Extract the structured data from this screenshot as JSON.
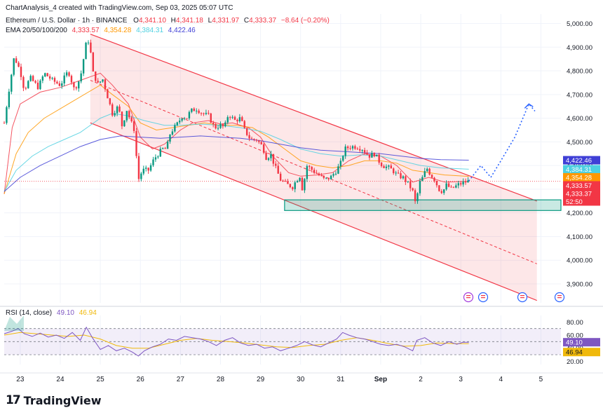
{
  "header": {
    "created": "ChartAnalysis_4 created with TradingView.com, Sep 03, 2025 05:07 UTC",
    "symbol": "Ethereum / U.S. Dollar · 1h · BINANCE",
    "o_label": "O",
    "o_value": "4,341.10",
    "h_label": "H",
    "h_value": "4,341.18",
    "l_label": "L",
    "l_value": "4,331.97",
    "c_label": "C",
    "c_value": "4,333.37",
    "change": "−8.64 (−0.20%)",
    "ema_label": "EMA 20/50/100/200",
    "ema20": "4,333.57",
    "ema50": "4,354.28",
    "ema100": "4,384.31",
    "ema200": "4,422.46",
    "rsi_label": "RSI (14, close)",
    "rsi_value": "49.10",
    "rsi_ma_value": "46.94"
  },
  "branding": {
    "logo_text": "TradingView",
    "logo_mark": "17"
  },
  "colors": {
    "up": "#089981",
    "down": "#f23645",
    "ema20": "#f23645",
    "ema50": "#ff9800",
    "ema100": "#4dd0e1",
    "ema200": "#3f3fd6",
    "channel": "#f23645",
    "zone": "#089981",
    "projection": "#2962ff",
    "rsi": "#7e57c2",
    "rsi_ma": "#f0b90b"
  },
  "chart_data": {
    "type": "candlestick",
    "symbol": "Ethereum / U.S. Dollar",
    "timeframe": "1h",
    "y_ticks": [
      3900,
      4000,
      4100,
      4200,
      4300,
      4400,
      4500,
      4600,
      4700,
      4800,
      4900,
      5000
    ],
    "y_tick_labels": [
      "3,900.00",
      "4,000.00",
      "4,100.00",
      "4,200.00",
      "4,300.00",
      "4,400.00",
      "4,500.00",
      "4,600.00",
      "4,700.00",
      "4,800.00",
      "4,900.00",
      "5,000.00"
    ],
    "ylim": [
      3820,
      5040
    ],
    "x_tick_labels": [
      "23",
      "24",
      "25",
      "26",
      "27",
      "28",
      "29",
      "30",
      "31",
      "Sep",
      "2",
      "3",
      "4",
      "5"
    ],
    "x_tick_days": [
      0,
      1,
      2,
      3,
      4,
      5,
      6,
      7,
      8,
      9,
      10,
      11,
      12,
      13
    ],
    "xlim_days": [
      -0.4,
      13.5
    ],
    "last_day": 11.2,
    "close_price_path": [
      [
        -0.4,
        4580
      ],
      [
        -0.3,
        4700
      ],
      [
        -0.15,
        4860
      ],
      [
        0.0,
        4800
      ],
      [
        0.1,
        4720
      ],
      [
        0.25,
        4770
      ],
      [
        0.45,
        4730
      ],
      [
        0.6,
        4790
      ],
      [
        0.8,
        4760
      ],
      [
        1.0,
        4740
      ],
      [
        1.2,
        4800
      ],
      [
        1.35,
        4720
      ],
      [
        1.5,
        4770
      ],
      [
        1.65,
        4920
      ],
      [
        1.72,
        4930
      ],
      [
        1.82,
        4790
      ],
      [
        1.95,
        4740
      ],
      [
        2.05,
        4770
      ],
      [
        2.15,
        4710
      ],
      [
        2.3,
        4620
      ],
      [
        2.45,
        4650
      ],
      [
        2.55,
        4560
      ],
      [
        2.65,
        4640
      ],
      [
        2.75,
        4590
      ],
      [
        2.85,
        4550
      ],
      [
        2.9,
        4440
      ],
      [
        2.95,
        4340
      ],
      [
        3.05,
        4380
      ],
      [
        3.2,
        4380
      ],
      [
        3.35,
        4430
      ],
      [
        3.55,
        4470
      ],
      [
        3.65,
        4470
      ],
      [
        3.75,
        4540
      ],
      [
        3.9,
        4570
      ],
      [
        4.05,
        4610
      ],
      [
        4.15,
        4600
      ],
      [
        4.25,
        4630
      ],
      [
        4.4,
        4640
      ],
      [
        4.55,
        4620
      ],
      [
        4.7,
        4610
      ],
      [
        4.85,
        4560
      ],
      [
        5.0,
        4570
      ],
      [
        5.1,
        4560
      ],
      [
        5.2,
        4620
      ],
      [
        5.35,
        4590
      ],
      [
        5.5,
        4600
      ],
      [
        5.6,
        4550
      ],
      [
        5.75,
        4510
      ],
      [
        5.9,
        4510
      ],
      [
        6.05,
        4480
      ],
      [
        6.15,
        4430
      ],
      [
        6.25,
        4450
      ],
      [
        6.35,
        4400
      ],
      [
        6.5,
        4340
      ],
      [
        6.65,
        4320
      ],
      [
        6.8,
        4310
      ],
      [
        6.9,
        4340
      ],
      [
        7.0,
        4360
      ],
      [
        7.05,
        4290
      ],
      [
        7.15,
        4400
      ],
      [
        7.3,
        4380
      ],
      [
        7.45,
        4360
      ],
      [
        7.6,
        4340
      ],
      [
        7.75,
        4350
      ],
      [
        7.9,
        4380
      ],
      [
        8.0,
        4410
      ],
      [
        8.1,
        4470
      ],
      [
        8.25,
        4480
      ],
      [
        8.4,
        4480
      ],
      [
        8.55,
        4470
      ],
      [
        8.7,
        4440
      ],
      [
        8.85,
        4450
      ],
      [
        8.95,
        4420
      ],
      [
        9.05,
        4400
      ],
      [
        9.2,
        4390
      ],
      [
        9.3,
        4380
      ],
      [
        9.4,
        4360
      ],
      [
        9.55,
        4350
      ],
      [
        9.7,
        4320
      ],
      [
        9.8,
        4290
      ],
      [
        9.88,
        4230
      ],
      [
        9.95,
        4320
      ],
      [
        10.05,
        4350
      ],
      [
        10.15,
        4390
      ],
      [
        10.25,
        4360
      ],
      [
        10.35,
        4340
      ],
      [
        10.45,
        4300
      ],
      [
        10.55,
        4290
      ],
      [
        10.65,
        4320
      ],
      [
        10.75,
        4300
      ],
      [
        10.85,
        4310
      ],
      [
        10.95,
        4320
      ],
      [
        11.1,
        4330
      ],
      [
        11.2,
        4333
      ]
    ],
    "ema_lines": [
      {
        "name": "EMA 20",
        "last": 4333.57,
        "points": [
          [
            -0.4,
            4280
          ],
          [
            -0.2,
            4560
          ],
          [
            0.0,
            4660
          ],
          [
            0.5,
            4710
          ],
          [
            1.0,
            4730
          ],
          [
            1.5,
            4760
          ],
          [
            2.0,
            4790
          ],
          [
            2.3,
            4740
          ],
          [
            2.7,
            4660
          ],
          [
            3.0,
            4520
          ],
          [
            3.3,
            4470
          ],
          [
            3.6,
            4490
          ],
          [
            4.0,
            4550
          ],
          [
            4.3,
            4580
          ],
          [
            4.7,
            4590
          ],
          [
            5.0,
            4575
          ],
          [
            5.3,
            4580
          ],
          [
            5.7,
            4560
          ],
          [
            6.0,
            4520
          ],
          [
            6.3,
            4440
          ],
          [
            6.7,
            4370
          ],
          [
            7.0,
            4355
          ],
          [
            7.4,
            4360
          ],
          [
            7.8,
            4370
          ],
          [
            8.2,
            4420
          ],
          [
            8.6,
            4450
          ],
          [
            9.0,
            4440
          ],
          [
            9.4,
            4400
          ],
          [
            9.8,
            4330
          ],
          [
            10.2,
            4350
          ],
          [
            10.6,
            4330
          ],
          [
            11.2,
            4333.57
          ]
        ]
      },
      {
        "name": "EMA 50",
        "last": 4354.28,
        "points": [
          [
            -0.4,
            4280
          ],
          [
            -0.1,
            4450
          ],
          [
            0.2,
            4540
          ],
          [
            0.6,
            4600
          ],
          [
            1.0,
            4640
          ],
          [
            1.5,
            4690
          ],
          [
            2.0,
            4740
          ],
          [
            2.3,
            4700
          ],
          [
            2.7,
            4650
          ],
          [
            3.0,
            4580
          ],
          [
            3.4,
            4550
          ],
          [
            3.8,
            4560
          ],
          [
            4.2,
            4570
          ],
          [
            4.6,
            4580
          ],
          [
            5.0,
            4570
          ],
          [
            5.4,
            4570
          ],
          [
            5.8,
            4560
          ],
          [
            6.2,
            4520
          ],
          [
            6.6,
            4470
          ],
          [
            7.0,
            4420
          ],
          [
            7.4,
            4400
          ],
          [
            7.8,
            4390
          ],
          [
            8.2,
            4400
          ],
          [
            8.6,
            4420
          ],
          [
            9.0,
            4420
          ],
          [
            9.4,
            4410
          ],
          [
            9.8,
            4380
          ],
          [
            10.2,
            4370
          ],
          [
            10.6,
            4360
          ],
          [
            11.2,
            4354.28
          ]
        ]
      },
      {
        "name": "EMA 100",
        "last": 4384.31,
        "points": [
          [
            -0.4,
            4290
          ],
          [
            -0.1,
            4380
          ],
          [
            0.3,
            4440
          ],
          [
            0.7,
            4480
          ],
          [
            1.1,
            4510
          ],
          [
            1.5,
            4540
          ],
          [
            2.0,
            4600
          ],
          [
            2.3,
            4620
          ],
          [
            2.7,
            4610
          ],
          [
            3.1,
            4590
          ],
          [
            3.6,
            4570
          ],
          [
            4.0,
            4570
          ],
          [
            4.5,
            4575
          ],
          [
            5.0,
            4570
          ],
          [
            5.5,
            4560
          ],
          [
            6.0,
            4545
          ],
          [
            6.5,
            4510
          ],
          [
            7.0,
            4470
          ],
          [
            7.5,
            4450
          ],
          [
            8.0,
            4440
          ],
          [
            8.5,
            4445
          ],
          [
            9.0,
            4440
          ],
          [
            9.5,
            4420
          ],
          [
            10.0,
            4400
          ],
          [
            10.5,
            4390
          ],
          [
            11.2,
            4384.31
          ]
        ]
      },
      {
        "name": "EMA 200",
        "last": 4422.46,
        "points": [
          [
            -0.4,
            4290
          ],
          [
            0.0,
            4350
          ],
          [
            0.5,
            4400
          ],
          [
            1.0,
            4440
          ],
          [
            1.5,
            4480
          ],
          [
            2.0,
            4510
          ],
          [
            2.5,
            4525
          ],
          [
            3.0,
            4520
          ],
          [
            3.5,
            4515
          ],
          [
            4.0,
            4520
          ],
          [
            4.5,
            4525
          ],
          [
            5.0,
            4520
          ],
          [
            5.5,
            4515
          ],
          [
            6.0,
            4505
          ],
          [
            6.5,
            4490
          ],
          [
            7.0,
            4475
          ],
          [
            7.5,
            4465
          ],
          [
            8.0,
            4460
          ],
          [
            8.5,
            4455
          ],
          [
            9.0,
            4450
          ],
          [
            9.5,
            4440
          ],
          [
            10.0,
            4430
          ],
          [
            10.5,
            4425
          ],
          [
            11.2,
            4422.46
          ]
        ]
      }
    ],
    "price_labels": [
      {
        "text": "4,422.46",
        "value": 4422.46,
        "color": "#3f3fd6"
      },
      {
        "text": "4,384.31",
        "value": 4384.31,
        "color": "#4dd0e1"
      },
      {
        "text": "4,354.28",
        "value": 4354.28,
        "color": "#ff9800"
      },
      {
        "text": "4,333.57",
        "value": 4333.57,
        "color": "#f23645"
      },
      {
        "text": "4,333.37",
        "value": 4333.37,
        "color": "#f23645"
      },
      {
        "text": "52:50",
        "value": 4314,
        "color": "#f23645"
      }
    ],
    "current_price": 4333.37,
    "channel": {
      "upper_start": [
        1.75,
        4955
      ],
      "upper_end": [
        12.9,
        4250
      ],
      "lower_start": [
        1.75,
        4580
      ],
      "lower_end": [
        12.9,
        3830
      ],
      "shaded_until_day": 12.9
    },
    "channel_mid": {
      "start": [
        1.75,
        4760
      ],
      "end": [
        12.9,
        3985
      ]
    },
    "support_zone": {
      "from_day": 6.6,
      "to_day": 13.5,
      "low": 4210,
      "high": 4255
    },
    "projection": [
      [
        11.2,
        4335
      ],
      [
        11.5,
        4400
      ],
      [
        11.75,
        4350
      ],
      [
        12.0,
        4420
      ],
      [
        12.35,
        4520
      ],
      [
        12.7,
        4660
      ],
      [
        12.85,
        4630
      ]
    ],
    "rsi": {
      "ticks": [
        20,
        40,
        60,
        80
      ],
      "tick_labels": [
        "20.00",
        "40.00",
        "60.00",
        "80.00"
      ],
      "band": [
        30,
        70
      ],
      "middle": 50,
      "ylim": [
        15,
        90
      ],
      "values": [
        [
          -0.4,
          62
        ],
        [
          -0.2,
          66
        ],
        [
          -0.05,
          70
        ],
        [
          0.1,
          62
        ],
        [
          0.3,
          58
        ],
        [
          0.5,
          63
        ],
        [
          0.7,
          57
        ],
        [
          0.9,
          60
        ],
        [
          1.1,
          55
        ],
        [
          1.3,
          64
        ],
        [
          1.5,
          52
        ],
        [
          1.65,
          72
        ],
        [
          1.8,
          56
        ],
        [
          2.0,
          38
        ],
        [
          2.2,
          44
        ],
        [
          2.4,
          36
        ],
        [
          2.6,
          40
        ],
        [
          2.8,
          34
        ],
        [
          2.95,
          28
        ],
        [
          3.1,
          36
        ],
        [
          3.3,
          42
        ],
        [
          3.5,
          46
        ],
        [
          3.7,
          54
        ],
        [
          3.9,
          52
        ],
        [
          4.1,
          58
        ],
        [
          4.3,
          56
        ],
        [
          4.5,
          54
        ],
        [
          4.7,
          50
        ],
        [
          4.9,
          44
        ],
        [
          5.1,
          52
        ],
        [
          5.3,
          56
        ],
        [
          5.5,
          48
        ],
        [
          5.7,
          44
        ],
        [
          5.9,
          46
        ],
        [
          6.1,
          40
        ],
        [
          6.3,
          42
        ],
        [
          6.5,
          36
        ],
        [
          6.7,
          40
        ],
        [
          6.9,
          44
        ],
        [
          7.1,
          50
        ],
        [
          7.3,
          45
        ],
        [
          7.5,
          42
        ],
        [
          7.7,
          48
        ],
        [
          7.9,
          54
        ],
        [
          8.05,
          64
        ],
        [
          8.2,
          60
        ],
        [
          8.4,
          56
        ],
        [
          8.6,
          54
        ],
        [
          8.8,
          50
        ],
        [
          9.0,
          46
        ],
        [
          9.2,
          44
        ],
        [
          9.4,
          46
        ],
        [
          9.6,
          42
        ],
        [
          9.8,
          36
        ],
        [
          9.9,
          52
        ],
        [
          10.1,
          56
        ],
        [
          10.3,
          48
        ],
        [
          10.5,
          44
        ],
        [
          10.7,
          50
        ],
        [
          10.9,
          46
        ],
        [
          11.05,
          49
        ],
        [
          11.2,
          49.1
        ]
      ],
      "ma_values": [
        [
          -0.4,
          60
        ],
        [
          0.0,
          64
        ],
        [
          0.4,
          62
        ],
        [
          0.8,
          60
        ],
        [
          1.2,
          58
        ],
        [
          1.6,
          60
        ],
        [
          2.0,
          54
        ],
        [
          2.4,
          44
        ],
        [
          2.8,
          40
        ],
        [
          3.2,
          40
        ],
        [
          3.6,
          46
        ],
        [
          4.0,
          52
        ],
        [
          4.4,
          55
        ],
        [
          4.8,
          52
        ],
        [
          5.2,
          50
        ],
        [
          5.6,
          48
        ],
        [
          6.0,
          45
        ],
        [
          6.4,
          42
        ],
        [
          6.8,
          41
        ],
        [
          7.2,
          44
        ],
        [
          7.6,
          46
        ],
        [
          8.0,
          52
        ],
        [
          8.4,
          56
        ],
        [
          8.8,
          52
        ],
        [
          9.2,
          47
        ],
        [
          9.6,
          43
        ],
        [
          10.0,
          44
        ],
        [
          10.4,
          48
        ],
        [
          10.8,
          47
        ],
        [
          11.2,
          46.94
        ]
      ]
    }
  }
}
